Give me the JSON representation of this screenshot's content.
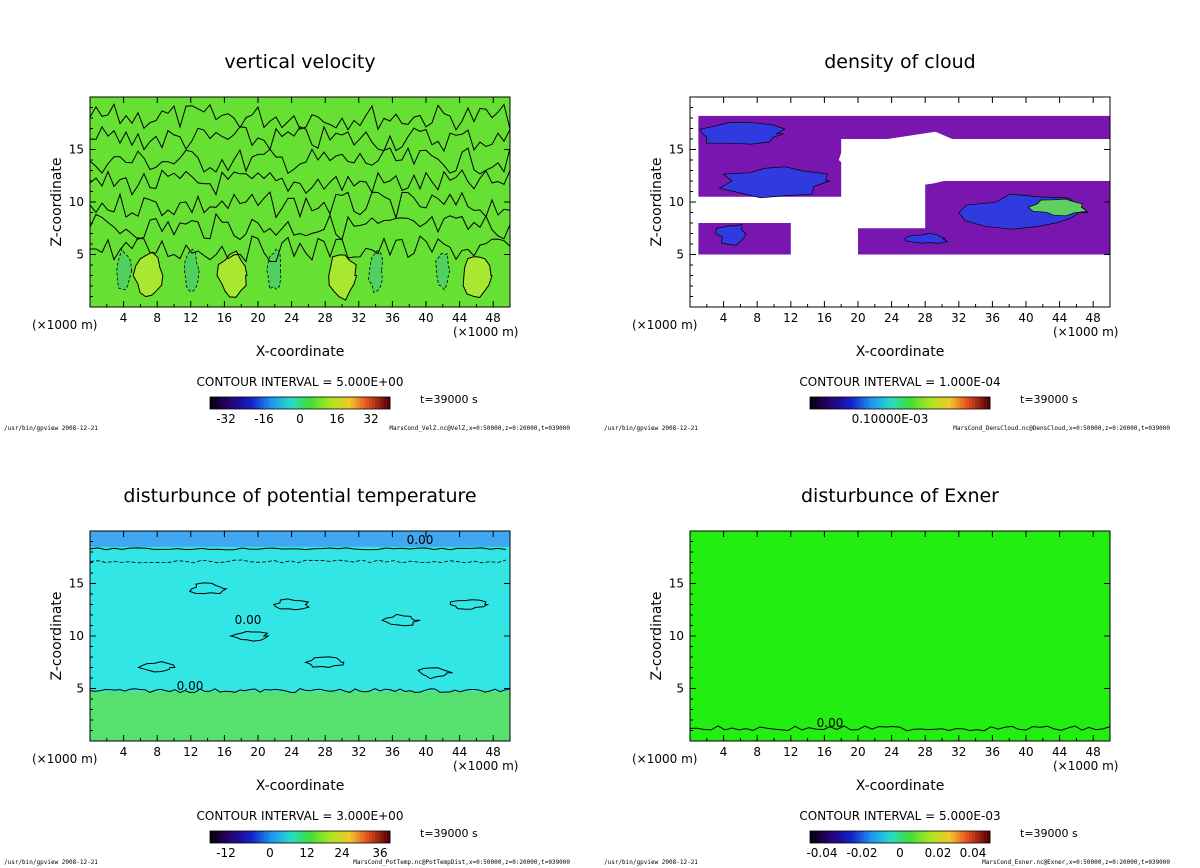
{
  "chart_data": [
    {
      "type": "heatmap",
      "title": "vertical velocity",
      "xlabel": "X-coordinate",
      "ylabel": "Z-coordinate",
      "x_unit": "(×1000 m)",
      "x_ticks": [
        "4",
        "8",
        "12",
        "16",
        "20",
        "24",
        "28",
        "32",
        "36",
        "40",
        "44",
        "48"
      ],
      "y_ticks": [
        "5",
        "10",
        "15"
      ],
      "xlim": [
        0,
        50
      ],
      "ylim": [
        0,
        20
      ],
      "contour_interval": "CONTOUR INTERVAL = 5.000E+00",
      "colorbar_ticks": [
        "-32",
        "-16",
        "0",
        "16",
        "32"
      ],
      "time": "t=39000 s",
      "footer_left": "/usr/bin/gpview   2008-12-21",
      "footer_right": "MarsCond_VelZ.nc@VelZ,x=0:50000,z=0:20000,t=039000",
      "colormap": "rainbow-dark",
      "field_color": "#66e033"
    },
    {
      "type": "heatmap",
      "title": "density of cloud",
      "xlabel": "X-coordinate",
      "ylabel": "Z-coordinate",
      "x_unit": "(×1000 m)",
      "x_ticks": [
        "4",
        "8",
        "12",
        "16",
        "20",
        "24",
        "28",
        "32",
        "36",
        "40",
        "44",
        "48"
      ],
      "y_ticks": [
        "5",
        "10",
        "15"
      ],
      "xlim": [
        0,
        50
      ],
      "ylim": [
        0,
        20
      ],
      "contour_interval": "CONTOUR INTERVAL = 1.000E-04",
      "colorbar_ticks": [
        "0.10000E-03"
      ],
      "time": "t=39000 s",
      "footer_left": "/usr/bin/gpview   2008-12-21",
      "footer_right": "MarsCond_DensCloud.nc@DensCloud,x=0:50000,z=0:20000,t=039000",
      "colormap": "rainbow-dark",
      "field_color": "#7a16b0"
    },
    {
      "type": "heatmap",
      "title": "disturbunce of potential temperature",
      "xlabel": "X-coordinate",
      "ylabel": "Z-coordinate",
      "x_unit": "(×1000 m)",
      "x_ticks": [
        "4",
        "8",
        "12",
        "16",
        "20",
        "24",
        "28",
        "32",
        "36",
        "40",
        "44",
        "48"
      ],
      "y_ticks": [
        "5",
        "10",
        "15"
      ],
      "xlim": [
        0,
        50
      ],
      "ylim": [
        0,
        20
      ],
      "contour_interval": "CONTOUR INTERVAL = 3.000E+00",
      "colorbar_ticks": [
        "-12",
        "0",
        "12",
        "24",
        "36"
      ],
      "contour_labels": [
        "0.00",
        "0.00",
        "0.00"
      ],
      "time": "t=39000 s",
      "footer_left": "/usr/bin/gpview   2008-12-21",
      "footer_right": "MarsCond_PotTemp.nc@PotTempDist,x=0:50000,z=0:20000,t=039000",
      "colormap": "rainbow-dark",
      "field_color": "#33e6e6"
    },
    {
      "type": "heatmap",
      "title": "disturbunce of Exner",
      "xlabel": "X-coordinate",
      "ylabel": "Z-coordinate",
      "x_unit": "(×1000 m)",
      "x_ticks": [
        "4",
        "8",
        "12",
        "16",
        "20",
        "24",
        "28",
        "32",
        "36",
        "40",
        "44",
        "48"
      ],
      "y_ticks": [
        "5",
        "10",
        "15"
      ],
      "xlim": [
        0,
        50
      ],
      "ylim": [
        0,
        20
      ],
      "contour_interval": "CONTOUR INTERVAL = 5.000E-03",
      "colorbar_ticks": [
        "-0.04",
        "-0.02",
        "0",
        "0.02",
        "0.04"
      ],
      "contour_labels": [
        "0.00"
      ],
      "time": "t=39000 s",
      "footer_left": "/usr/bin/gpview   2008-12-21",
      "footer_right": "MarsCond_Exner.nc@Exner,x=0:50000,z=0:20000,t=039000",
      "colormap": "rainbow-dark",
      "field_color": "#22ee11"
    }
  ]
}
